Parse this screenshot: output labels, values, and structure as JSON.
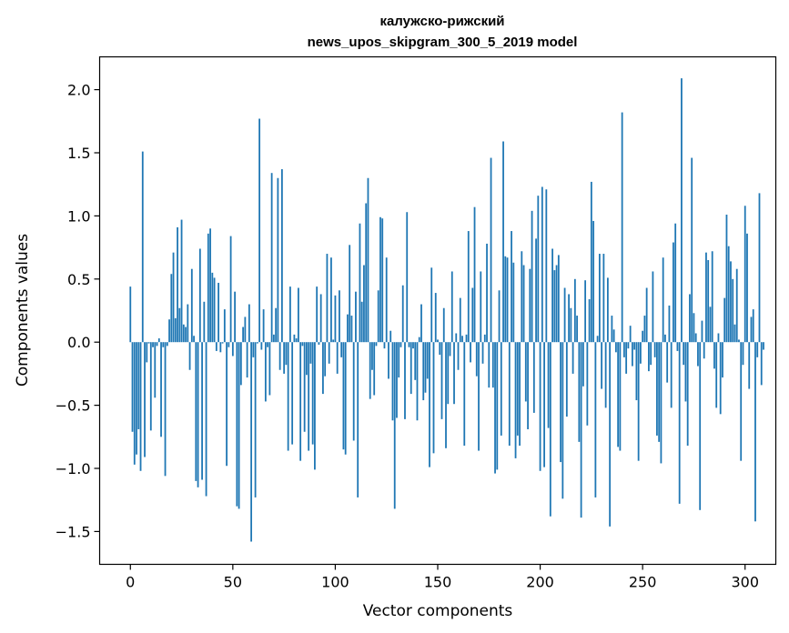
{
  "chart_data": {
    "type": "bar",
    "title_lines": [
      "калужско-рижский",
      "news_upos_skipgram_300_5_2019 model"
    ],
    "xlabel": "Vector components",
    "ylabel": "Components values",
    "xlim": [
      -15,
      315
    ],
    "ylim": [
      -1.76,
      2.26
    ],
    "x_ticks": [
      0,
      50,
      100,
      150,
      200,
      250,
      300
    ],
    "x_tick_labels": [
      "0",
      "50",
      "100",
      "150",
      "200",
      "250",
      "300"
    ],
    "y_ticks": [
      -1.5,
      -1.0,
      -0.5,
      0.0,
      0.5,
      1.0,
      1.5,
      2.0
    ],
    "y_tick_labels": [
      "−1.5",
      "−1.0",
      "−0.5",
      "0.0",
      "0.5",
      "1.0",
      "1.5",
      "2.0"
    ],
    "grid": false,
    "bar_color": "#1f77b4",
    "values": [
      0.44,
      -0.71,
      -0.97,
      -0.89,
      -0.69,
      -1.02,
      1.51,
      -0.91,
      -0.16,
      -0.01,
      -0.7,
      -0.04,
      -0.44,
      -0.03,
      0.03,
      -0.75,
      -0.04,
      -1.06,
      -0.03,
      0.18,
      0.54,
      0.71,
      0.19,
      0.91,
      0.27,
      0.97,
      0.14,
      0.12,
      0.3,
      -0.22,
      0.58,
      0.05,
      -1.1,
      -1.15,
      0.74,
      -1.09,
      0.32,
      -1.22,
      0.86,
      0.9,
      0.55,
      0.51,
      -0.07,
      0.47,
      -0.08,
      -0.01,
      0.26,
      -0.98,
      -0.04,
      0.84,
      -0.11,
      0.4,
      -1.3,
      -1.32,
      -0.34,
      0.12,
      0.2,
      -0.28,
      0.3,
      -1.58,
      -0.12,
      -1.23,
      -0.01,
      1.77,
      -0.06,
      0.26,
      -0.47,
      -0.04,
      -0.42,
      1.34,
      0.06,
      0.27,
      1.3,
      -0.22,
      1.37,
      -0.25,
      -0.18,
      -0.86,
      0.44,
      -0.81,
      0.06,
      0.03,
      0.43,
      -0.94,
      -0.03,
      -0.71,
      -0.26,
      -0.86,
      -0.17,
      -0.81,
      -1.01,
      0.44,
      -0.02,
      0.38,
      -0.41,
      -0.27,
      0.7,
      -0.17,
      0.67,
      0.02,
      0.37,
      -0.25,
      0.41,
      -0.12,
      -0.85,
      -0.89,
      0.22,
      0.77,
      0.21,
      -0.78,
      0.4,
      -1.23,
      0.94,
      0.32,
      0.61,
      1.1,
      1.3,
      -0.45,
      -0.22,
      -0.42,
      -0.03,
      0.41,
      0.99,
      0.98,
      -0.05,
      0.67,
      -0.29,
      0.09,
      -0.62,
      -1.32,
      -0.6,
      -0.28,
      -0.04,
      0.45,
      -0.61,
      1.03,
      -0.04,
      -0.41,
      -0.05,
      -0.3,
      -0.62,
      0.04,
      0.3,
      -0.46,
      -0.4,
      -0.29,
      -0.99,
      0.59,
      -0.88,
      0.39,
      0.02,
      -0.1,
      -0.61,
      0.27,
      -0.84,
      -0.49,
      -0.11,
      0.56,
      -0.49,
      0.07,
      -0.22,
      0.35,
      0.05,
      -0.82,
      0.06,
      0.88,
      -0.16,
      0.43,
      1.07,
      -0.27,
      -0.86,
      0.56,
      -0.17,
      0.06,
      0.78,
      -0.36,
      1.46,
      -0.36,
      -1.04,
      -1.01,
      0.41,
      -0.74,
      1.59,
      0.68,
      0.67,
      -0.82,
      0.88,
      0.63,
      -0.92,
      -0.74,
      -0.82,
      0.72,
      0.61,
      -0.47,
      -0.69,
      0.58,
      1.04,
      -0.56,
      0.82,
      1.16,
      -1.02,
      1.23,
      -0.99,
      1.21,
      -0.68,
      -1.38,
      0.74,
      0.57,
      0.61,
      0.69,
      -0.95,
      -1.24,
      0.43,
      -0.59,
      0.38,
      0.27,
      -0.25,
      0.5,
      0.21,
      -0.79,
      -1.39,
      -0.35,
      0.49,
      -0.66,
      0.34,
      1.27,
      0.96,
      -1.23,
      0.05,
      0.7,
      -0.37,
      0.7,
      -0.52,
      0.51,
      -1.46,
      0.21,
      0.1,
      -0.08,
      -0.83,
      -0.86,
      1.82,
      -0.12,
      -0.25,
      -0.05,
      0.13,
      -0.19,
      -0.06,
      -0.46,
      -0.94,
      -0.17,
      0.09,
      0.21,
      0.43,
      -0.23,
      -0.18,
      0.56,
      -0.12,
      -0.74,
      -0.79,
      -0.96,
      0.67,
      0.06,
      -0.32,
      0.29,
      -0.52,
      0.79,
      0.94,
      -0.07,
      -1.28,
      2.09,
      -0.18,
      -0.47,
      -0.82,
      0.38,
      1.46,
      0.23,
      0.07,
      -0.19,
      -1.33,
      0.17,
      -0.13,
      0.71,
      0.65,
      0.28,
      0.72,
      -0.21,
      -0.52,
      0.07,
      -0.57,
      -0.28,
      0.35,
      1.01,
      0.76,
      0.64,
      0.5,
      0.14,
      0.58,
      0.02,
      -0.94,
      -0.18,
      1.08,
      0.86,
      -0.37,
      0.2,
      0.26,
      -1.42,
      -0.12,
      1.18,
      -0.34,
      -0.06
    ]
  }
}
